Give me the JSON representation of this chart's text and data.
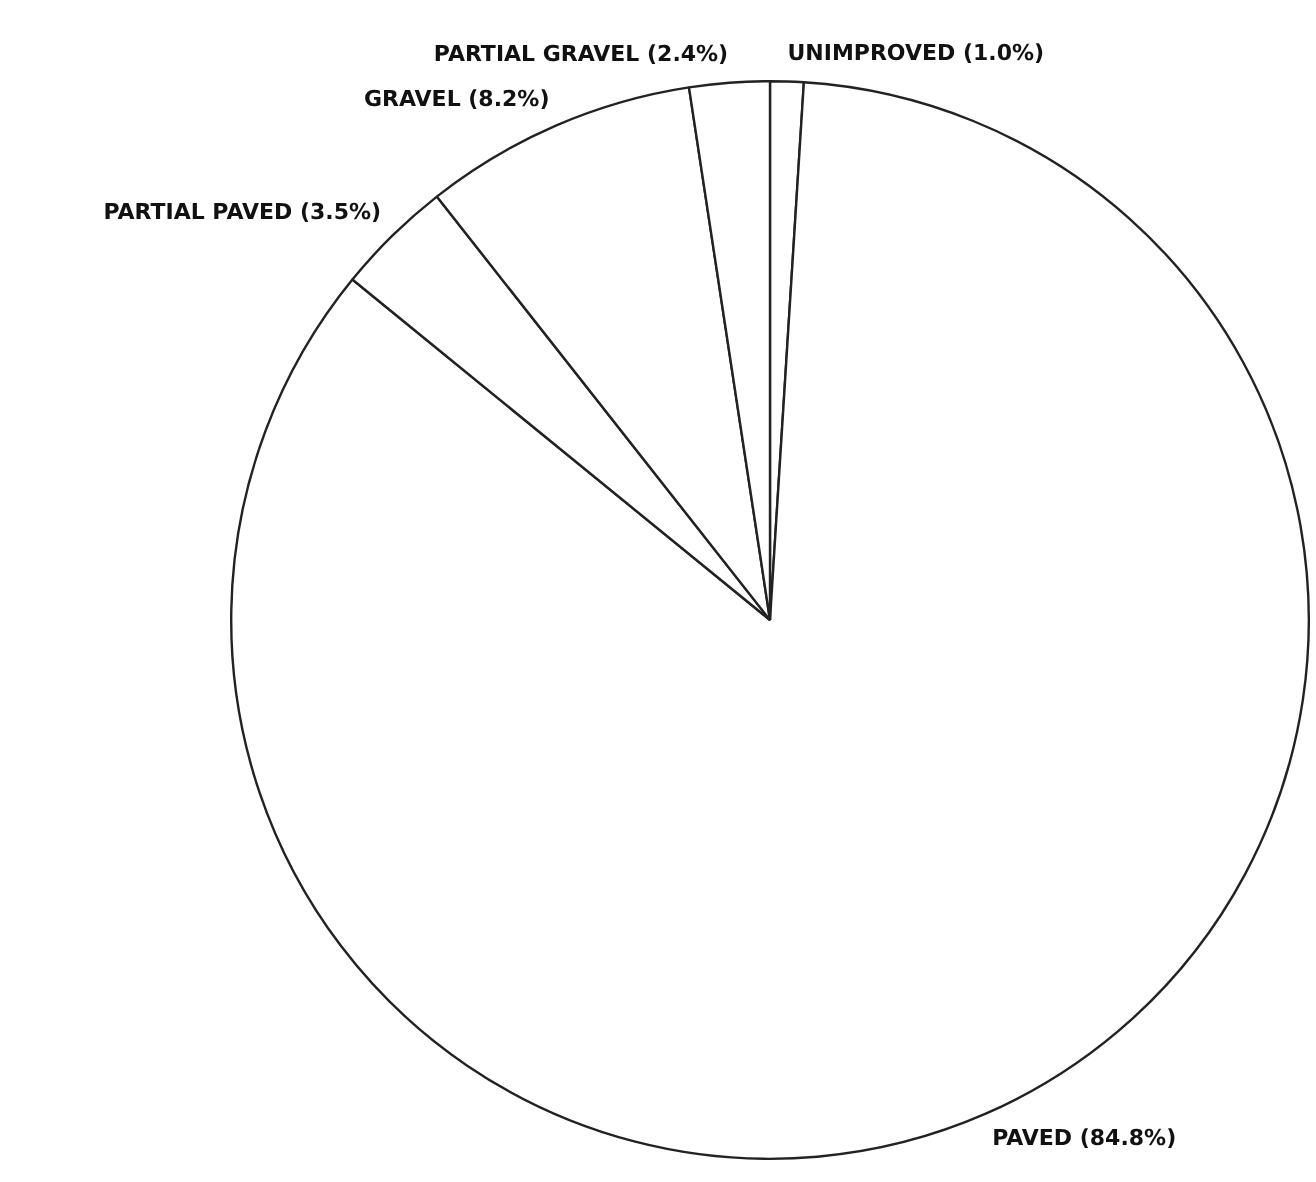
{
  "chart_data": {
    "type": "pie",
    "categories": [
      "UNIMPROVED (1.0%)",
      "PAVED (84.8%)",
      "PARTIAL PAVED (3.5%)",
      "GRAVEL (8.2%)",
      "PARTIAL GRAVEL (2.4%)"
    ],
    "values": [
      1.0,
      84.8,
      3.5,
      8.2,
      2.4
    ],
    "colors": [
      "#ffffff",
      "#ffffff",
      "#ffffff",
      "#ffffff",
      "#ffffff"
    ],
    "legend": false
  }
}
